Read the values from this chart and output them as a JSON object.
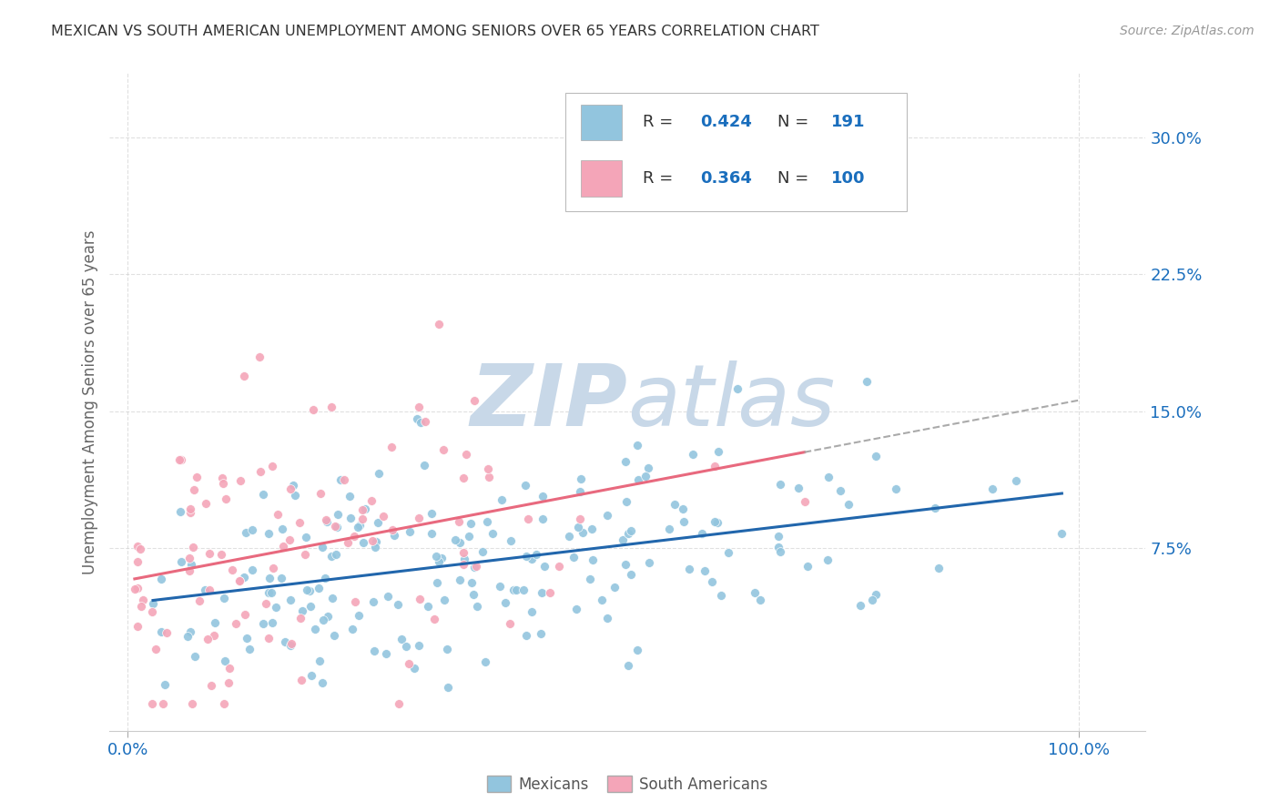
{
  "title": "MEXICAN VS SOUTH AMERICAN UNEMPLOYMENT AMONG SENIORS OVER 65 YEARS CORRELATION CHART",
  "source": "Source: ZipAtlas.com",
  "ylabel": "Unemployment Among Seniors over 65 years",
  "mexicans_R": "0.424",
  "mexicans_N": "191",
  "south_americans_R": "0.364",
  "south_americans_N": "100",
  "mexican_color": "#92c5de",
  "south_american_color": "#f4a5b8",
  "mexican_line_color": "#2166ac",
  "south_american_line_color": "#e8697e",
  "watermark_zip_color": "#c8d8e8",
  "watermark_atlas_color": "#c8d8e8",
  "background_color": "#ffffff",
  "grid_color": "#cccccc",
  "title_color": "#333333",
  "legend_text_color": "#1a6ebd",
  "axis_tick_color": "#1a6ebd",
  "label_color": "#666666",
  "yticks": [
    0.075,
    0.15,
    0.225,
    0.3
  ],
  "ytick_labels": [
    "7.5%",
    "15.0%",
    "22.5%",
    "30.0%"
  ],
  "xticks": [
    0.0,
    1.0
  ],
  "xtick_labels": [
    "0.0%",
    "100.0%"
  ],
  "ylim": [
    -0.025,
    0.335
  ],
  "xlim": [
    -0.02,
    1.07
  ]
}
